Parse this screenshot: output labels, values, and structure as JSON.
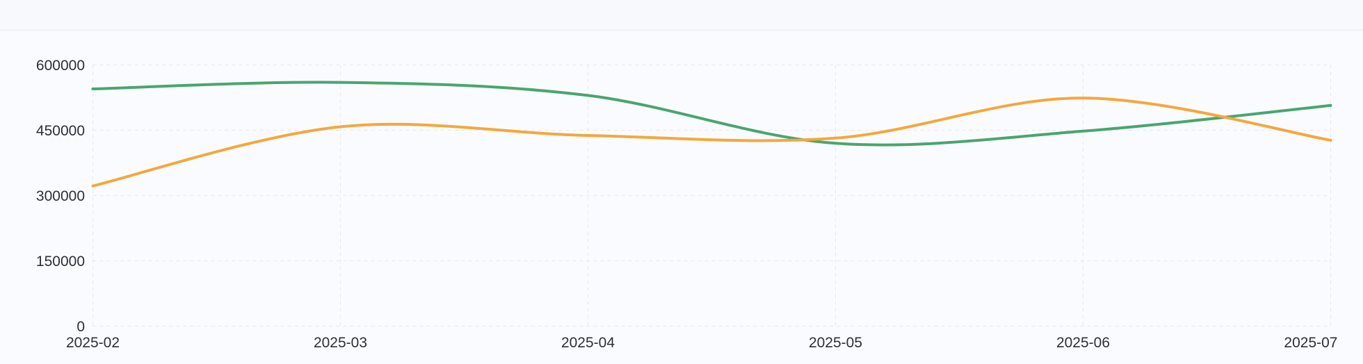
{
  "topbar": {},
  "chart_data": {
    "type": "line",
    "title": "",
    "xlabel": "",
    "ylabel": "",
    "x": [
      "2025-02",
      "2025-03",
      "2025-04",
      "2025-05",
      "2025-06",
      "2025-07"
    ],
    "series": [
      {
        "name": "green",
        "color": "#48a66f",
        "values": [
          545000,
          560000,
          530000,
          420000,
          448000,
          507000
        ]
      },
      {
        "name": "orange",
        "color": "#f5a73c",
        "values": [
          322000,
          458000,
          438000,
          432000,
          524000,
          427000
        ]
      }
    ],
    "ylim": [
      0,
      600000
    ],
    "yticks": [
      0,
      150000,
      300000,
      450000,
      600000
    ],
    "ytick_labels": [
      "0",
      "150000",
      "300000",
      "450000",
      "600000"
    ],
    "smooth": true,
    "grid": {
      "style": "dashed",
      "color": "#e4e7ec",
      "dash": "5 5"
    },
    "legend": "none",
    "line_width": 4,
    "text_color": "#2b3039"
  }
}
